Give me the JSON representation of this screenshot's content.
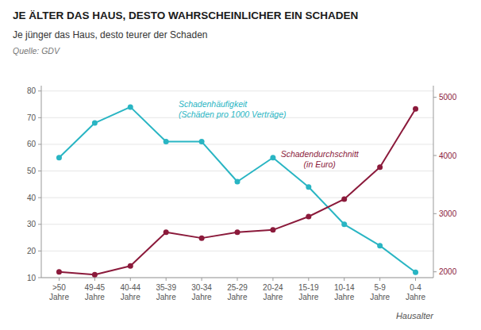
{
  "chart_data": {
    "type": "line",
    "title": "JE ÄLTER DAS HAUS, DESTO WAHRSCHEINLICHER EIN SCHADEN",
    "subtitle": "Je jünger das Haus, desto teurer der Schaden",
    "annotations": [
      "Quelle: GDV"
    ],
    "x_label": "Hausalter",
    "categories": [
      ">50\nJahre",
      "49-45\nJahre",
      "40-44\nJahre",
      "35-39\nJahre",
      "30-34\nJahre",
      "25-29\nJahre",
      "20-24\nJahre",
      "15-19\nJahre",
      "10-14\nJahre",
      "5-9\nJahre",
      "0-4\nJahre"
    ],
    "series": [
      {
        "name": "Schadenhäufigkeit\n(Schäden pro 1000 Verträge)",
        "color": "#29B5C3",
        "marker": "circle",
        "values": [
          55,
          68,
          74,
          61,
          61,
          46,
          55,
          44,
          30,
          22,
          12
        ]
      },
      {
        "name": "Schadendurchschnitt\n(in Euro)",
        "color": "#8B1A3B",
        "marker": "circle",
        "axis": "y2",
        "values": [
          2000,
          1950,
          2100,
          2680,
          2580,
          2680,
          2720,
          2950,
          3250,
          3800,
          4800
        ]
      }
    ],
    "ylim": [
      10,
      82
    ],
    "yticks": [
      10,
      20,
      30,
      40,
      50,
      60,
      70,
      80
    ],
    "y2lim": [
      1900,
      5200
    ],
    "y2ticks": [
      2000,
      3000,
      4000,
      5000
    ],
    "grid": true
  }
}
